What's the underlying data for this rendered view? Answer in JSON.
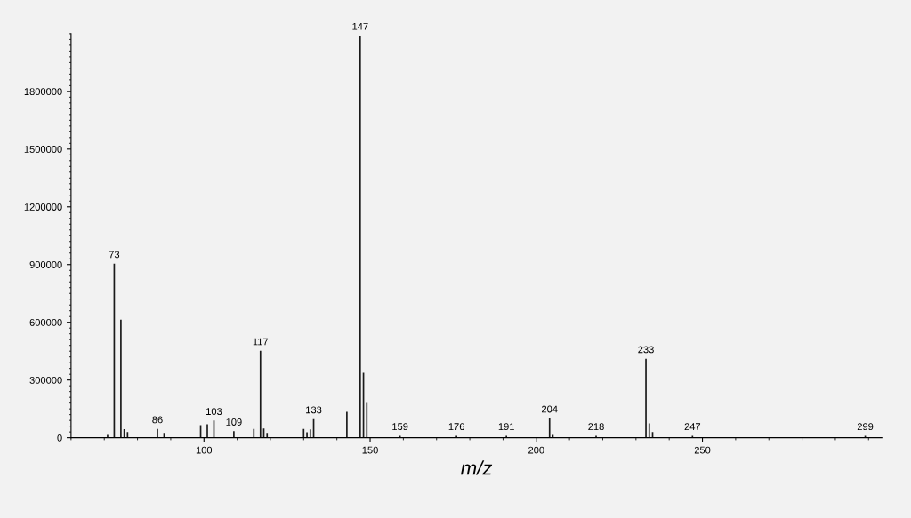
{
  "chart_data": {
    "type": "bar",
    "xlabel": "m/z",
    "x": [
      71,
      73,
      75,
      76,
      77,
      86,
      88,
      99,
      101,
      103,
      109,
      115,
      117,
      118,
      119,
      130,
      131,
      132,
      133,
      143,
      147,
      148,
      149,
      159,
      176,
      191,
      204,
      205,
      218,
      233,
      234,
      235,
      247,
      299
    ],
    "series": [
      {
        "color": "#1a1a1a",
        "values": [
          15000,
          905000,
          614000,
          45000,
          30000,
          46000,
          25000,
          65000,
          70000,
          89000,
          34000,
          46000,
          452000,
          48000,
          25000,
          46000,
          28000,
          43000,
          97000,
          135000,
          2090000,
          338000,
          181000,
          10000,
          10000,
          10000,
          101000,
          15000,
          10000,
          411000,
          75000,
          30000,
          10000,
          10000
        ]
      }
    ],
    "xlim": [
      60,
      304
    ],
    "xticks": [
      100,
      150,
      200,
      250
    ],
    "ylim": [
      0,
      2100000
    ],
    "yticks": [
      0,
      300000,
      600000,
      900000,
      1200000,
      1500000,
      1800000
    ],
    "annotations": [
      {
        "text": "73",
        "x": 73,
        "y": 905000
      },
      {
        "text": "86",
        "x": 86,
        "y": 46000
      },
      {
        "text": "103",
        "x": 103,
        "y": 89000
      },
      {
        "text": "109",
        "x": 109,
        "y": 34000
      },
      {
        "text": "117",
        "x": 117,
        "y": 452000
      },
      {
        "text": "133",
        "x": 133,
        "y": 97000
      },
      {
        "text": "147",
        "x": 147,
        "y": 2090000
      },
      {
        "text": "159",
        "x": 159,
        "y": 10000
      },
      {
        "text": "176",
        "x": 176,
        "y": 10000
      },
      {
        "text": "191",
        "x": 191,
        "y": 10000
      },
      {
        "text": "204",
        "x": 204,
        "y": 101000
      },
      {
        "text": "218",
        "x": 218,
        "y": 10000
      },
      {
        "text": "233",
        "x": 233,
        "y": 411000
      },
      {
        "text": "247",
        "x": 247,
        "y": 10000
      },
      {
        "text": "299",
        "x": 299,
        "y": 10000
      }
    ],
    "grid": false
  }
}
